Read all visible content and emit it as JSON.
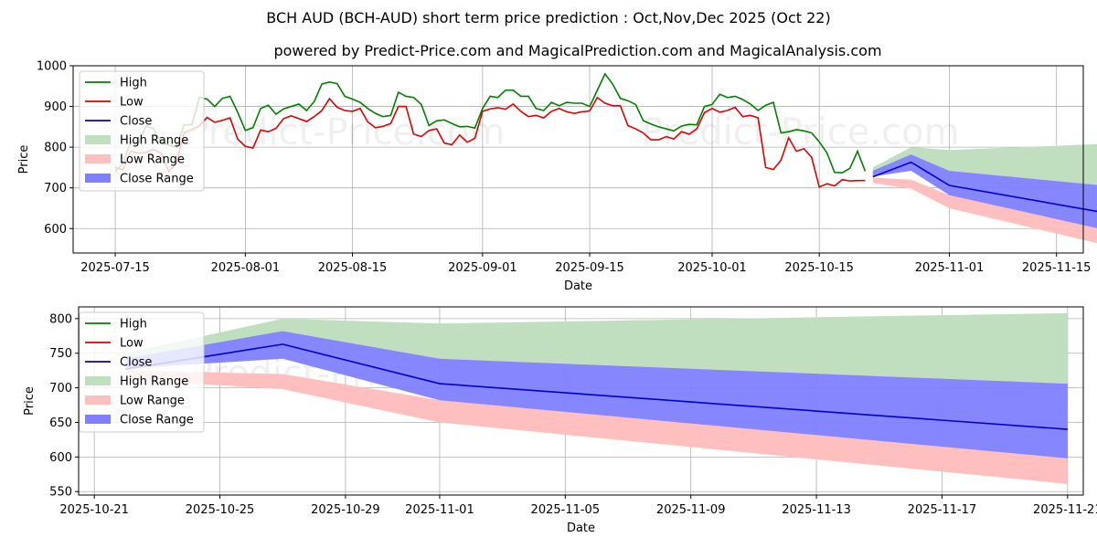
{
  "page": {
    "title": "BCH AUD (BCH-AUD) short term price prediction : Oct,Nov,Dec 2025 (Oct 22)",
    "subtitle": "powered by Predict-Price.com and MagicalPrediction.com and MagicalAnalysis.com",
    "watermark": "Predict-Price.com"
  },
  "colors": {
    "high": "#008000",
    "low": "#e00000",
    "close": "#0000cc",
    "high_range": "#bfdfbf",
    "low_range": "#ffbfbf",
    "close_range": "#7f7fff",
    "grid": "#b0b0b0"
  },
  "legend": [
    "High",
    "Low",
    "Close",
    "High Range",
    "Low Range",
    "Close Range"
  ],
  "chart_data": [
    {
      "type": "line",
      "id": "top",
      "xlabel": "Date",
      "ylabel": "Price",
      "xlim": [
        -5.5,
        126.5
      ],
      "ylim": [
        540,
        1000
      ],
      "y_ticks": [
        600,
        700,
        800,
        900,
        1000
      ],
      "x_ticks": [
        {
          "day": 0,
          "label": "2025-07-15"
        },
        {
          "day": 17,
          "label": "2025-08-01"
        },
        {
          "day": 31,
          "label": "2025-08-15"
        },
        {
          "day": 48,
          "label": "2025-09-01"
        },
        {
          "day": 62,
          "label": "2025-09-15"
        },
        {
          "day": 78,
          "label": "2025-10-01"
        },
        {
          "day": 92,
          "label": "2025-10-15"
        },
        {
          "day": 109,
          "label": "2025-11-01"
        },
        {
          "day": 123,
          "label": "2025-11-15"
        }
      ],
      "history_start_day": 0,
      "history_high": [
        740,
        760,
        812,
        807,
        852,
        846,
        812,
        805,
        800,
        855,
        855,
        922,
        918,
        900,
        920,
        925,
        886,
        841,
        848,
        895,
        903,
        881,
        894,
        900,
        906,
        890,
        912,
        955,
        960,
        956,
        925,
        918,
        910,
        895,
        883,
        875,
        878,
        935,
        925,
        922,
        905,
        853,
        865,
        867,
        858,
        850,
        851,
        847,
        895,
        925,
        922,
        940,
        940,
        925,
        925,
        895,
        890,
        910,
        902,
        910,
        908,
        908,
        900,
        940,
        980,
        955,
        920,
        914,
        905,
        865,
        857,
        850,
        845,
        840,
        852,
        856,
        855,
        900,
        905,
        930,
        922,
        925,
        917,
        906,
        890,
        903,
        910,
        835,
        838,
        843,
        840,
        835,
        813,
        786,
        738,
        737,
        748,
        790,
        741
      ],
      "history_low": [
        750,
        745,
        790,
        785,
        787,
        795,
        785,
        740,
        760,
        836,
        843,
        852,
        873,
        861,
        866,
        872,
        820,
        802,
        798,
        842,
        838,
        846,
        870,
        877,
        870,
        863,
        875,
        890,
        919,
        898,
        890,
        888,
        895,
        862,
        848,
        851,
        858,
        900,
        900,
        832,
        826,
        841,
        845,
        810,
        806,
        830,
        812,
        822,
        888,
        894,
        897,
        893,
        906,
        888,
        875,
        878,
        872,
        888,
        895,
        887,
        883,
        887,
        889,
        922,
        908,
        902,
        902,
        853,
        845,
        835,
        818,
        818,
        826,
        820,
        838,
        832,
        845,
        885,
        895,
        886,
        890,
        898,
        875,
        878,
        872,
        750,
        745,
        768,
        823,
        790,
        796,
        775,
        702,
        710,
        705,
        720,
        717,
        718,
        718
      ],
      "history_close": [],
      "forecast": [
        {
          "day": 99,
          "high": 741,
          "low": 723,
          "close": 727,
          "high_range": [
            735,
            750
          ],
          "low_range": [
            712,
            725
          ],
          "close_range": [
            728,
            742
          ]
        },
        {
          "day": 104,
          "high": 800,
          "low": 715,
          "close": 763,
          "high_range": [
            782,
            800
          ],
          "low_range": [
            698,
            720
          ],
          "close_range": [
            742,
            782
          ]
        },
        {
          "day": 109,
          "high": 793,
          "low": 650,
          "close": 706,
          "high_range": [
            742,
            793
          ],
          "low_range": [
            650,
            682
          ],
          "close_range": [
            682,
            742
          ]
        },
        {
          "day": 129,
          "high": 808,
          "low": 561,
          "close": 640,
          "high_range": [
            706,
            808
          ],
          "low_range": [
            561,
            598
          ],
          "close_range": [
            598,
            706
          ]
        }
      ]
    },
    {
      "type": "line",
      "id": "bottom",
      "xlabel": "Date",
      "ylabel": "Price",
      "xlim": [
        -0.5,
        31.5
      ],
      "ylim": [
        545,
        817
      ],
      "y_ticks": [
        550,
        600,
        650,
        700,
        750,
        800
      ],
      "x_ticks": [
        {
          "day": 0,
          "label": "2025-10-21"
        },
        {
          "day": 4,
          "label": "2025-10-25"
        },
        {
          "day": 8,
          "label": "2025-10-29"
        },
        {
          "day": 11,
          "label": "2025-11-01"
        },
        {
          "day": 15,
          "label": "2025-11-05"
        },
        {
          "day": 19,
          "label": "2025-11-09"
        },
        {
          "day": 23,
          "label": "2025-11-13"
        },
        {
          "day": 27,
          "label": "2025-11-17"
        },
        {
          "day": 31,
          "label": "2025-11-21"
        }
      ],
      "forecast": [
        {
          "day": 1,
          "close": 727,
          "high_range": [
            735,
            750
          ],
          "low_range": [
            712,
            725
          ],
          "close_range": [
            728,
            742
          ]
        },
        {
          "day": 6,
          "close": 763,
          "high_range": [
            782,
            800
          ],
          "low_range": [
            698,
            720
          ],
          "close_range": [
            742,
            782
          ]
        },
        {
          "day": 11,
          "close": 706,
          "high_range": [
            742,
            793
          ],
          "low_range": [
            650,
            682
          ],
          "close_range": [
            682,
            742
          ]
        },
        {
          "day": 31,
          "close": 640,
          "high_range": [
            706,
            808
          ],
          "low_range": [
            561,
            598
          ],
          "close_range": [
            598,
            706
          ]
        }
      ]
    }
  ]
}
